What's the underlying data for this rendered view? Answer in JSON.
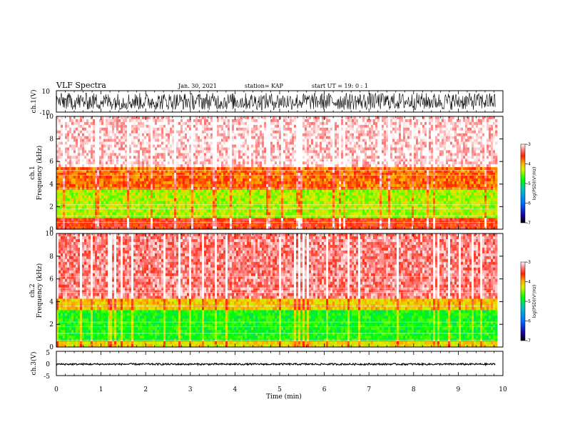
{
  "header": {
    "title": "VLF Spectra",
    "date": "Jan. 30, 2021",
    "station": "station= KAP",
    "start": "start UT =   19: 0  : 1"
  },
  "chart_data": [
    {
      "type": "line",
      "panel": "ch1-waveform",
      "ylabel": "ch.1(V)",
      "ylim": [
        -10,
        10
      ],
      "yticks": [
        "10",
        "-10"
      ],
      "xlim": [
        0,
        9.83
      ],
      "description_values": {
        "typical_amplitude_range": [
          -8,
          8
        ]
      }
    },
    {
      "type": "heatmap",
      "panel": "ch1-spectrogram",
      "ylabel": "ch.1\nFrequency (kHz)",
      "ylim": [
        0,
        10
      ],
      "yticks": [
        "0",
        "2",
        "4",
        "6",
        "8",
        "10"
      ],
      "xlim": [
        0,
        9.83
      ],
      "bands_khz": [
        {
          "from": 0,
          "to": 1.0,
          "level": -3.6
        },
        {
          "from": 1.0,
          "to": 3.6,
          "level": -4.4
        },
        {
          "from": 3.6,
          "to": 5.6,
          "level": -3.8
        },
        {
          "from": 5.6,
          "to": 10,
          "level": -3.1
        }
      ]
    },
    {
      "type": "heatmap",
      "panel": "ch2-spectrogram",
      "ylabel": "ch.2\nFrequency (kHz)",
      "ylim": [
        0,
        10
      ],
      "yticks": [
        "0",
        "2",
        "4",
        "6",
        "8",
        "10"
      ],
      "xlim": [
        0,
        9.83
      ],
      "bands_khz": [
        {
          "from": 0,
          "to": 0.6,
          "level": -4.2
        },
        {
          "from": 0.6,
          "to": 3.2,
          "level": -4.8
        },
        {
          "from": 3.2,
          "to": 4.2,
          "level": -4.1
        },
        {
          "from": 4.2,
          "to": 10,
          "level": -3.3
        }
      ]
    },
    {
      "type": "line",
      "panel": "ch3-waveform",
      "ylabel": "ch.3(V)",
      "ylim": [
        -5,
        5
      ],
      "yticks": [
        "5",
        "0",
        "-5"
      ],
      "xlim": [
        0,
        9.83
      ],
      "description_values": {
        "offset": -0.3,
        "amplitude": 0.35
      }
    }
  ],
  "xaxis": {
    "label": "Time (min)",
    "range": [
      0,
      10
    ],
    "ticks": [
      "0",
      "1",
      "2",
      "3",
      "4",
      "5",
      "6",
      "7",
      "8",
      "9",
      "10"
    ]
  },
  "colorbar": {
    "label": "log(PSD)(V²/Hz)",
    "range": [
      -7,
      -3
    ],
    "ticks": [
      "-3",
      "-4",
      "-5",
      "-6",
      "-7"
    ]
  }
}
